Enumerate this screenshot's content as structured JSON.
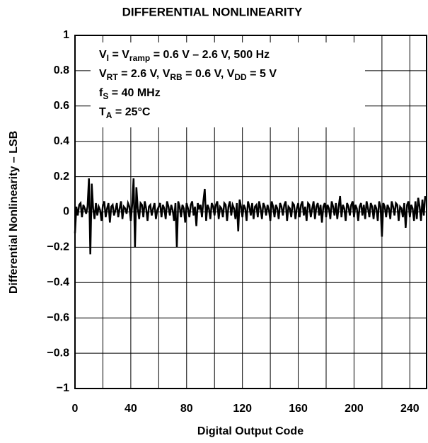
{
  "chart_data": {
    "type": "line",
    "title": "DIFFERENTIAL NONLINEARITY",
    "xlabel": "Digital Output Code",
    "ylabel": "Differential Nonlinearity – LSB",
    "annotations": [
      [
        "V",
        "I",
        " = V",
        "ramp",
        " = 0.6 V – 2.6 V, 500 Hz"
      ],
      [
        "V",
        "RT",
        " = 2.6 V, V",
        "RB",
        " = 0.6 V, V",
        "DD",
        " = 5 V"
      ],
      [
        "f",
        "S",
        " = 40 MHz"
      ],
      [
        "T",
        "A",
        " = 25°C"
      ]
    ],
    "xlim": [
      0,
      252
    ],
    "ylim": [
      -1,
      1
    ],
    "xticks": [
      0,
      40,
      80,
      120,
      160,
      200,
      240
    ],
    "xminorticks": [
      20,
      60,
      100,
      140,
      180,
      220
    ],
    "yticks": [
      {
        "value": -1,
        "label": "−1"
      },
      {
        "value": -0.8,
        "label": "−0.8"
      },
      {
        "value": -0.6,
        "label": "−0.6"
      },
      {
        "value": -0.4,
        "label": "−0.4"
      },
      {
        "value": -0.2,
        "label": "−0.2"
      },
      0,
      0.2,
      0.4,
      0.6,
      0.8,
      1
    ],
    "grid": true,
    "series": [
      {
        "color": "#000000",
        "x": [
          0,
          1,
          2,
          3,
          4,
          5,
          6,
          7,
          8,
          9,
          10,
          11,
          12,
          13,
          14,
          15,
          16,
          17,
          18,
          19,
          20,
          21,
          22,
          23,
          24,
          25,
          26,
          27,
          28,
          29,
          30,
          31,
          32,
          33,
          34,
          35,
          36,
          37,
          38,
          39,
          40,
          41,
          42,
          43,
          44,
          45,
          46,
          47,
          48,
          49,
          50,
          51,
          52,
          53,
          54,
          55,
          56,
          57,
          58,
          59,
          60,
          61,
          62,
          63,
          64,
          65,
          66,
          67,
          68,
          69,
          70,
          71,
          72,
          73,
          74,
          75,
          76,
          77,
          78,
          79,
          80,
          81,
          82,
          83,
          84,
          85,
          86,
          87,
          88,
          89,
          90,
          91,
          92,
          93,
          94,
          95,
          96,
          97,
          98,
          99,
          100,
          101,
          102,
          103,
          104,
          105,
          106,
          107,
          108,
          109,
          110,
          111,
          112,
          113,
          114,
          115,
          116,
          117,
          118,
          119,
          120,
          121,
          122,
          123,
          124,
          125,
          126,
          127,
          128,
          129,
          130,
          131,
          132,
          133,
          134,
          135,
          136,
          137,
          138,
          139,
          140,
          141,
          142,
          143,
          144,
          145,
          146,
          147,
          148,
          149,
          150,
          151,
          152,
          153,
          154,
          155,
          156,
          157,
          158,
          159,
          160,
          161,
          162,
          163,
          164,
          165,
          166,
          167,
          168,
          169,
          170,
          171,
          172,
          173,
          174,
          175,
          176,
          177,
          178,
          179,
          180,
          181,
          182,
          183,
          184,
          185,
          186,
          187,
          188,
          189,
          190,
          191,
          192,
          193,
          194,
          195,
          196,
          197,
          198,
          199,
          200,
          201,
          202,
          203,
          204,
          205,
          206,
          207,
          208,
          209,
          210,
          211,
          212,
          213,
          214,
          215,
          216,
          217,
          218,
          219,
          220,
          221,
          222,
          223,
          224,
          225,
          226,
          227,
          228,
          229,
          230,
          231,
          232,
          233,
          234,
          235,
          236,
          237,
          238,
          239,
          240,
          241,
          242,
          243,
          244,
          245,
          246,
          247,
          248,
          249,
          250,
          251
        ],
        "values": [
          -0.12,
          0.03,
          -0.02,
          0.04,
          0.05,
          -0.03,
          0.04,
          0.02,
          -0.01,
          0.03,
          0.19,
          -0.24,
          0.16,
          0.02,
          -0.04,
          0.05,
          -0.02,
          0.03,
          0.01,
          -0.05,
          0.04,
          0.06,
          -0.03,
          0.02,
          0.05,
          -0.06,
          0.03,
          0.04,
          -0.02,
          0.01,
          0.05,
          -0.03,
          0.02,
          0.06,
          -0.04,
          0.03,
          0.02,
          -0.01,
          0.05,
          0.03,
          -0.05,
          0.04,
          0.19,
          -0.2,
          0.14,
          0.02,
          -0.04,
          0.05,
          0.04,
          -0.03,
          0.06,
          0.02,
          -0.05,
          0.03,
          0.04,
          -0.02,
          0.02,
          0.05,
          -0.04,
          0.01,
          0.03,
          0.05,
          -0.03,
          0.04,
          0.02,
          -0.04,
          0.06,
          0.03,
          -0.02,
          0.04,
          0.01,
          -0.05,
          0.05,
          -0.2,
          0.06,
          0.03,
          -0.03,
          0.04,
          0.02,
          -0.06,
          0.05,
          0.02,
          -0.03,
          0.04,
          0.06,
          -0.02,
          0.03,
          -0.08,
          0.05,
          0.02,
          0.04,
          -0.03,
          0.06,
          0.13,
          -0.05,
          0.04,
          0.02,
          -0.04,
          0.05,
          0.03,
          -0.02,
          0.04,
          0.06,
          -0.04,
          0.03,
          0.02,
          -0.03,
          0.05,
          0.04,
          -0.05,
          0.03,
          0.06,
          -0.02,
          0.04,
          0.02,
          -0.04,
          0.05,
          -0.11,
          0.07,
          0.03,
          -0.03,
          0.04,
          0.02,
          -0.05,
          0.06,
          0.03,
          -0.02,
          0.05,
          -0.04,
          0.03,
          0.04,
          -0.03,
          0.06,
          0.02,
          -0.04,
          0.05,
          0.03,
          -0.02,
          0.04,
          0.01,
          -0.05,
          0.06,
          0.03,
          -0.03,
          0.04,
          0.02,
          -0.04,
          0.05,
          0.03,
          -0.02,
          0.04,
          0.06,
          -0.05,
          0.03,
          0.02,
          -0.03,
          0.05,
          0.04,
          -0.04,
          0.02,
          0.05,
          -0.03,
          0.04,
          0.06,
          -0.02,
          0.03,
          -0.05,
          0.05,
          0.04,
          -0.03,
          0.02,
          0.06,
          -0.04,
          0.03,
          0.05,
          -0.02,
          0.04,
          -0.06,
          0.03,
          0.05,
          -0.03,
          0.04,
          0.02,
          -0.04,
          0.06,
          0.03,
          -0.02,
          0.05,
          -0.04,
          0.03,
          0.09,
          -0.03,
          0.04,
          0.02,
          -0.05,
          0.05,
          0.03,
          -0.02,
          0.04,
          0.06,
          -0.03,
          0.04,
          0.02,
          -0.05,
          0.03,
          0.05,
          -0.02,
          0.04,
          -0.04,
          0.06,
          0.02,
          -0.03,
          0.05,
          0.03,
          -0.04,
          0.04,
          0.02,
          -0.05,
          0.06,
          0.03,
          -0.14,
          0.05,
          0.03,
          -0.03,
          0.04,
          0.02,
          -0.04,
          0.06,
          0.03,
          -0.02,
          0.05,
          0.04,
          -0.05,
          0.03,
          0.02,
          -0.03,
          0.05,
          -0.09,
          0.04,
          0.06,
          -0.03,
          0.04,
          0.02,
          -0.05,
          0.06,
          -0.04,
          0.08,
          0.03,
          -0.05,
          0.07,
          -0.02,
          0.09
        ]
      }
    ]
  }
}
